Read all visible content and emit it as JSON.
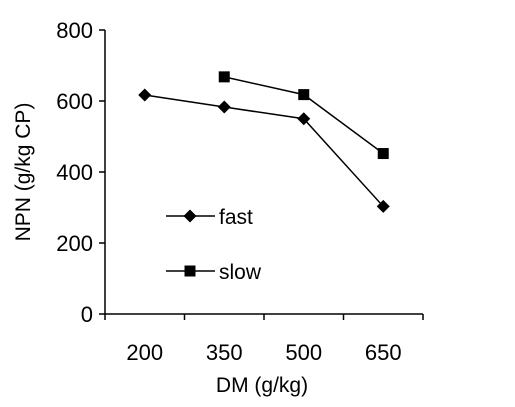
{
  "chart_data": {
    "type": "line",
    "xlabel": "DM (g/kg)",
    "ylabel": "NPN  (g/kg CP)",
    "categories": [
      "200",
      "350",
      "500",
      "650"
    ],
    "ylim": [
      0,
      800
    ],
    "yticks": [
      "0",
      "200",
      "400",
      "600",
      "800"
    ],
    "grid": false,
    "legend_position": "left",
    "series": [
      {
        "name": "fast",
        "marker": "diamond",
        "values": [
          617,
          583,
          550,
          303
        ]
      },
      {
        "name": "slow",
        "marker": "square",
        "values": [
          null,
          668,
          618,
          452
        ]
      }
    ]
  }
}
